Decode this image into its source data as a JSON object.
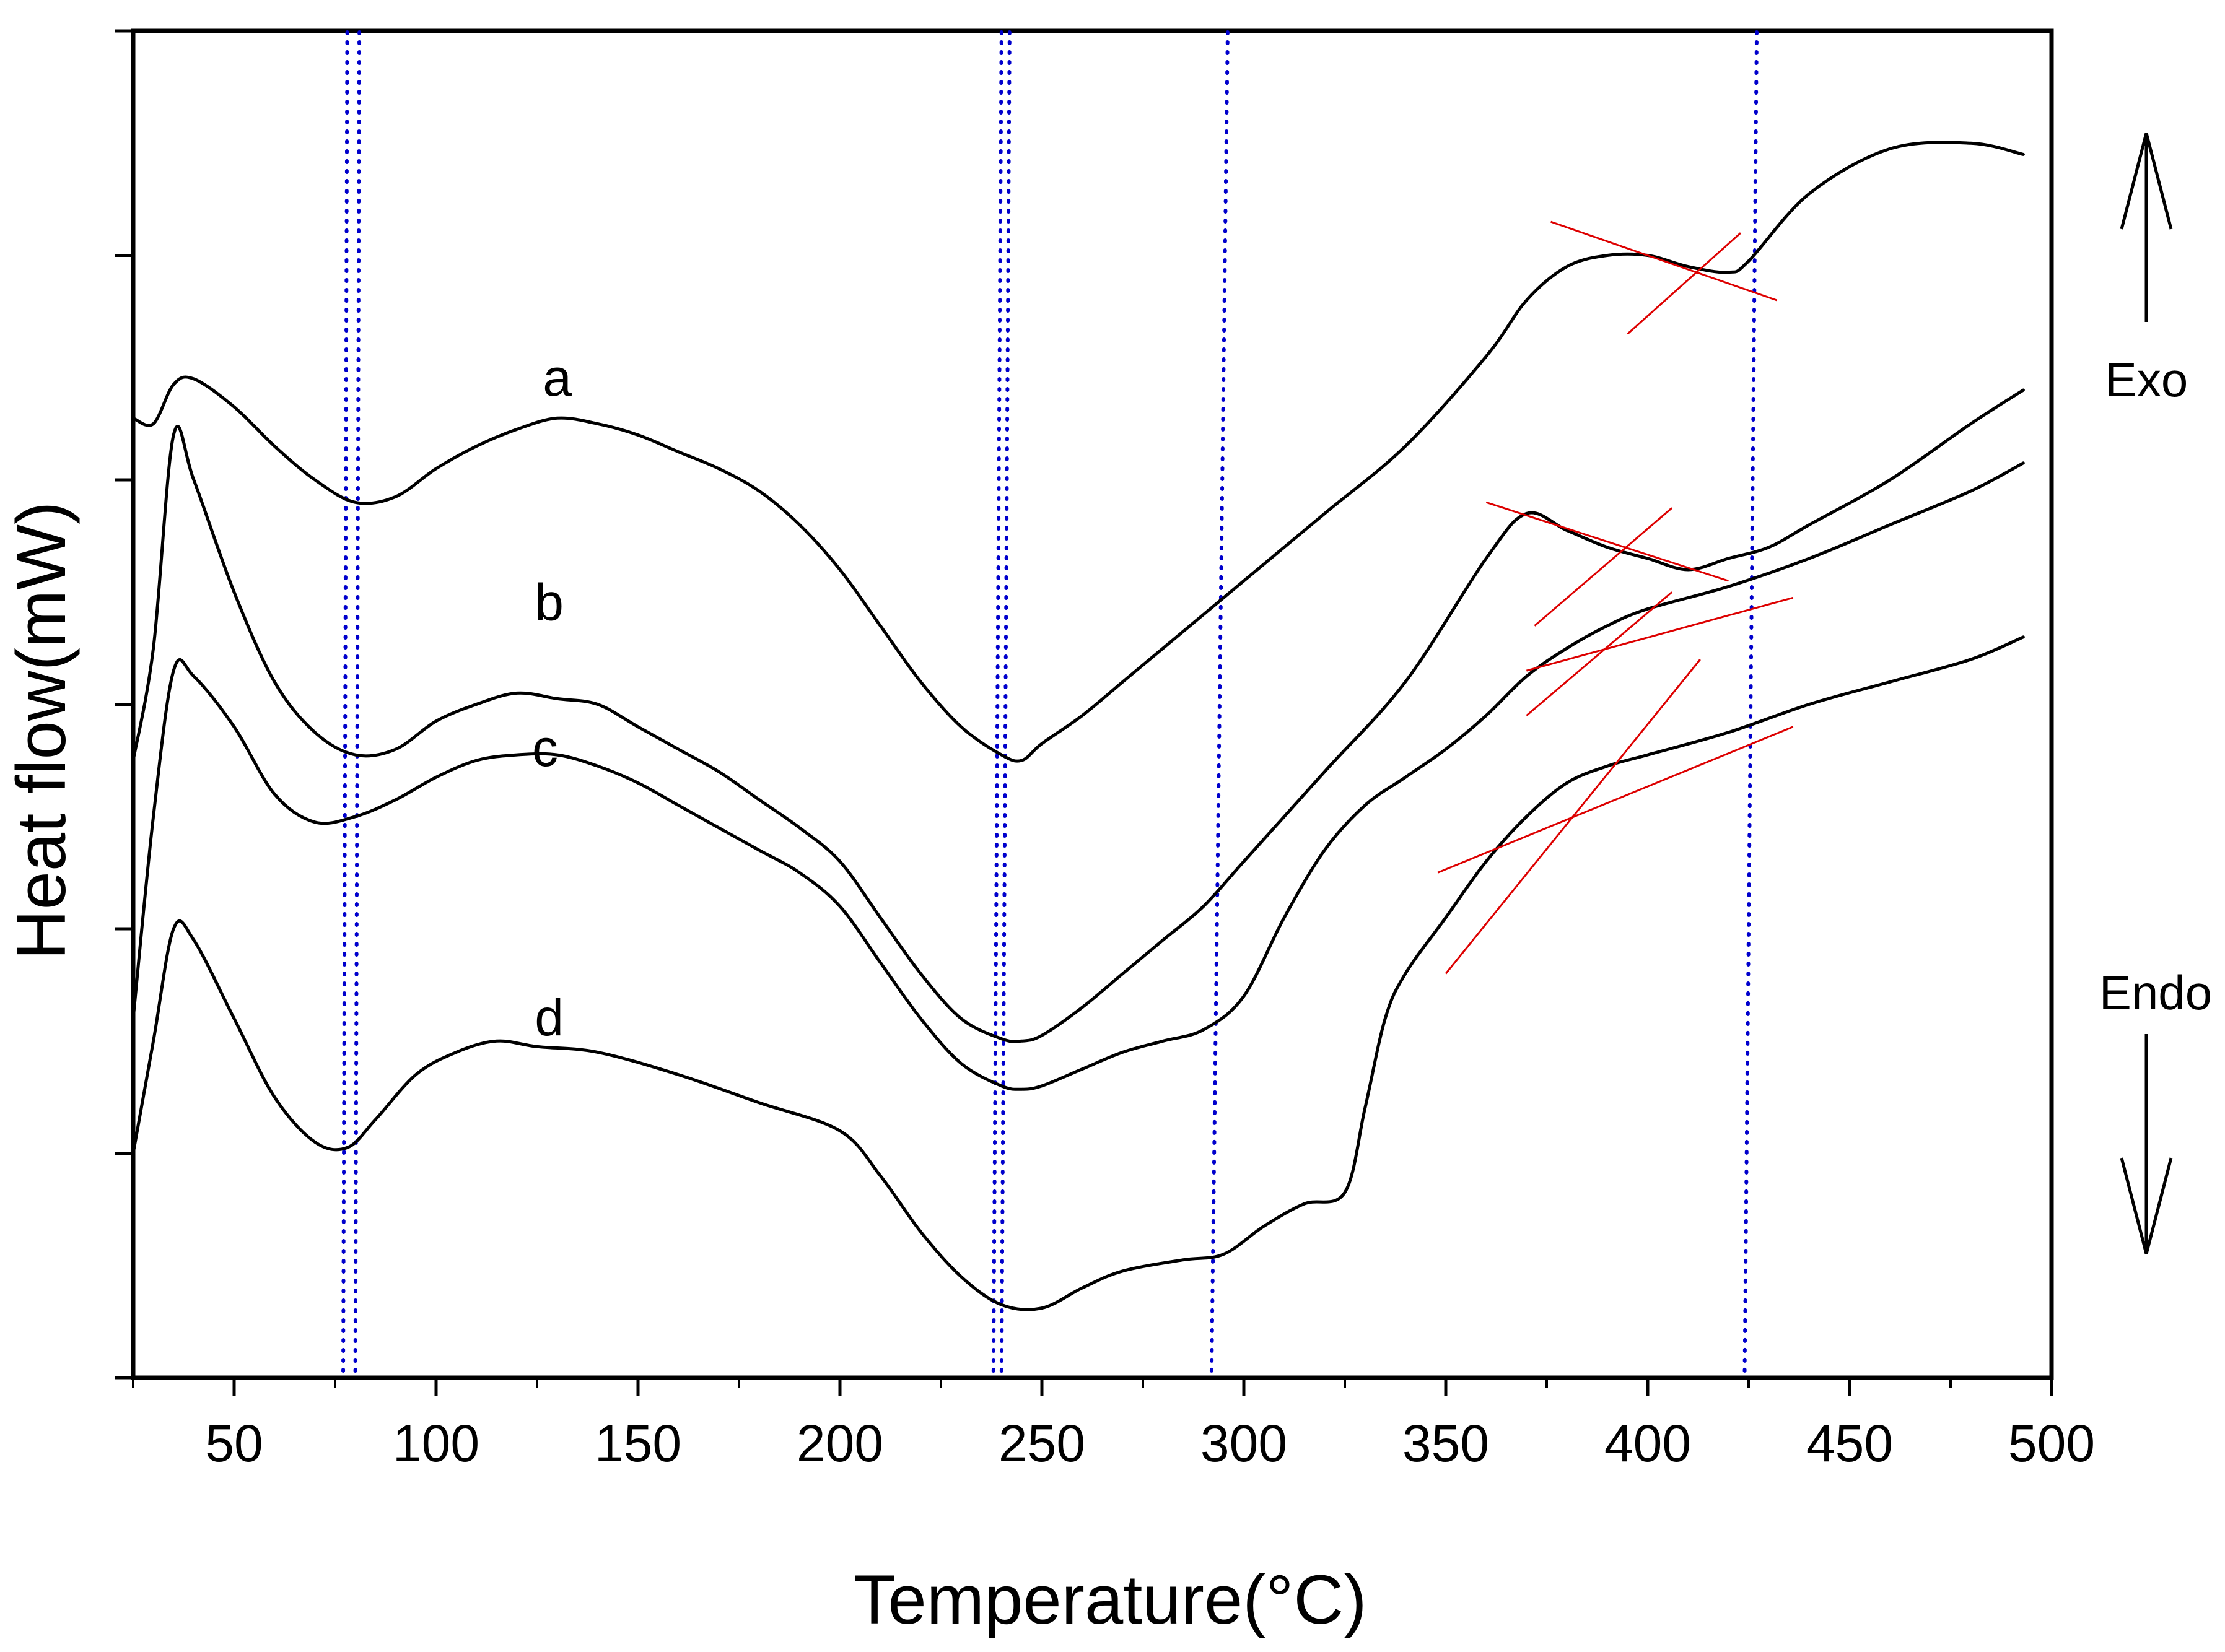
{
  "chart_data": {
    "type": "line",
    "title": "",
    "xlabel": "Temperature(°C)",
    "ylabel": "Heat flow(mW)",
    "xlim": [
      25,
      500
    ],
    "ylim": [
      0,
      12
    ],
    "xticks": [
      50,
      100,
      150,
      200,
      250,
      300,
      350,
      400,
      450,
      500
    ],
    "xtick_labels": [
      "50",
      "100",
      "150",
      "200",
      "250",
      "300",
      "350",
      "400",
      "450",
      "500"
    ],
    "yticks": [
      0,
      2,
      4,
      6,
      8,
      10,
      12
    ],
    "ytick_labels_shown": false,
    "grid": false,
    "series": [
      {
        "name": "a",
        "color": "#000000",
        "x": [
          25,
          30,
          35,
          40,
          50,
          60,
          70,
          80,
          90,
          100,
          110,
          120,
          130,
          140,
          150,
          160,
          170,
          180,
          190,
          200,
          210,
          220,
          230,
          240,
          245,
          250,
          260,
          270,
          280,
          290,
          300,
          320,
          340,
          360,
          370,
          380,
          390,
          400,
          410,
          420,
          425,
          440,
          460,
          480,
          493
        ],
        "y": [
          8.55,
          8.5,
          8.85,
          8.9,
          8.65,
          8.3,
          8.0,
          7.8,
          7.85,
          8.1,
          8.3,
          8.45,
          8.55,
          8.5,
          8.4,
          8.25,
          8.1,
          7.9,
          7.6,
          7.2,
          6.7,
          6.2,
          5.8,
          5.55,
          5.5,
          5.65,
          5.9,
          6.2,
          6.5,
          6.8,
          7.1,
          7.7,
          8.3,
          9.1,
          9.6,
          9.9,
          10.0,
          10.0,
          9.9,
          9.85,
          9.95,
          10.55,
          10.95,
          11.0,
          10.9
        ]
      },
      {
        "name": "b",
        "color": "#000000",
        "x": [
          25,
          30,
          35,
          40,
          50,
          60,
          70,
          80,
          90,
          100,
          110,
          120,
          130,
          140,
          150,
          160,
          170,
          180,
          190,
          200,
          210,
          220,
          230,
          240,
          245,
          250,
          260,
          270,
          280,
          290,
          300,
          320,
          340,
          360,
          370,
          380,
          390,
          400,
          410,
          420,
          430,
          440,
          460,
          480,
          493
        ],
        "y": [
          5.5,
          6.5,
          8.4,
          8.0,
          7.0,
          6.2,
          5.75,
          5.55,
          5.6,
          5.85,
          6.0,
          6.1,
          6.05,
          6.0,
          5.8,
          5.6,
          5.4,
          5.15,
          4.9,
          4.6,
          4.1,
          3.6,
          3.2,
          3.02,
          3.0,
          3.05,
          3.3,
          3.6,
          3.9,
          4.2,
          4.6,
          5.4,
          6.2,
          7.3,
          7.7,
          7.55,
          7.4,
          7.3,
          7.2,
          7.3,
          7.4,
          7.6,
          8.0,
          8.5,
          8.8
        ]
      },
      {
        "name": "c",
        "color": "#000000",
        "x": [
          25,
          30,
          35,
          40,
          50,
          60,
          70,
          80,
          90,
          100,
          110,
          120,
          130,
          140,
          150,
          160,
          170,
          180,
          190,
          200,
          210,
          220,
          230,
          240,
          245,
          250,
          260,
          270,
          280,
          290,
          300,
          310,
          320,
          330,
          340,
          350,
          360,
          370,
          380,
          390,
          400,
          420,
          440,
          460,
          480,
          493
        ],
        "y": [
          3.2,
          5.0,
          6.3,
          6.25,
          5.8,
          5.2,
          4.95,
          5.0,
          5.15,
          5.35,
          5.5,
          5.55,
          5.55,
          5.45,
          5.3,
          5.1,
          4.9,
          4.7,
          4.5,
          4.2,
          3.7,
          3.2,
          2.8,
          2.6,
          2.57,
          2.6,
          2.75,
          2.9,
          3.0,
          3.1,
          3.4,
          4.1,
          4.7,
          5.1,
          5.35,
          5.6,
          5.9,
          6.25,
          6.5,
          6.7,
          6.85,
          7.05,
          7.3,
          7.6,
          7.9,
          8.15
        ]
      },
      {
        "name": "d",
        "color": "#000000",
        "x": [
          25,
          30,
          35,
          40,
          50,
          60,
          70,
          78,
          85,
          95,
          105,
          115,
          125,
          140,
          160,
          180,
          200,
          210,
          220,
          230,
          240,
          250,
          260,
          270,
          285,
          295,
          305,
          315,
          325,
          330,
          335,
          340,
          350,
          360,
          370,
          380,
          390,
          400,
          420,
          440,
          460,
          480,
          493
        ],
        "y": [
          2.0,
          3.0,
          4.0,
          3.9,
          3.2,
          2.5,
          2.1,
          2.05,
          2.3,
          2.7,
          2.9,
          3.0,
          2.95,
          2.9,
          2.7,
          2.45,
          2.2,
          1.8,
          1.3,
          0.9,
          0.65,
          0.62,
          0.8,
          0.95,
          1.05,
          1.1,
          1.35,
          1.55,
          1.65,
          2.4,
          3.2,
          3.6,
          4.1,
          4.6,
          5.0,
          5.3,
          5.45,
          5.55,
          5.75,
          6.0,
          6.2,
          6.4,
          6.6
        ]
      }
    ],
    "series_labels": [
      {
        "text": "a",
        "x": 130,
        "y": 8.75
      },
      {
        "text": "b",
        "x": 128,
        "y": 6.75
      },
      {
        "text": "c",
        "x": 127,
        "y": 5.45
      },
      {
        "text": "d",
        "x": 128,
        "y": 3.05
      }
    ],
    "tangent_lines": [
      {
        "color": "#dd0000",
        "x": [
          376,
          432
        ],
        "y": [
          10.3,
          9.6
        ]
      },
      {
        "color": "#dd0000",
        "x": [
          395,
          423
        ],
        "y": [
          9.3,
          10.2
        ]
      },
      {
        "color": "#dd0000",
        "x": [
          360,
          420
        ],
        "y": [
          7.8,
          7.1
        ]
      },
      {
        "color": "#dd0000",
        "x": [
          372,
          406
        ],
        "y": [
          6.7,
          7.75
        ]
      },
      {
        "color": "#dd0000",
        "x": [
          370,
          436
        ],
        "y": [
          6.3,
          6.95
        ]
      },
      {
        "color": "#dd0000",
        "x": [
          370,
          406
        ],
        "y": [
          5.9,
          7.0
        ]
      },
      {
        "color": "#dd0000",
        "x": [
          348,
          436
        ],
        "y": [
          4.5,
          5.8
        ]
      },
      {
        "color": "#dd0000",
        "x": [
          350,
          413
        ],
        "y": [
          3.6,
          6.4
        ]
      }
    ],
    "reference_lines": [
      {
        "color": "#0000cc",
        "style": "dotted",
        "x": [
          81,
          80
        ]
      },
      {
        "color": "#0000cc",
        "style": "dotted",
        "x": [
          242,
          240
        ]
      },
      {
        "color": "#0000cc",
        "style": "dotted",
        "x": [
          296,
          292
        ]
      },
      {
        "color": "#0000cc",
        "style": "dotted",
        "x": [
          427,
          424
        ]
      },
      {
        "color": "#0000cc",
        "style": "dotted",
        "x": [
          78,
          77
        ]
      },
      {
        "color": "#0000cc",
        "style": "dotted",
        "x": [
          240,
          238
        ]
      }
    ],
    "annotations": [
      {
        "text": "Exo",
        "direction": "up"
      },
      {
        "text": "Endo",
        "direction": "down"
      }
    ]
  }
}
